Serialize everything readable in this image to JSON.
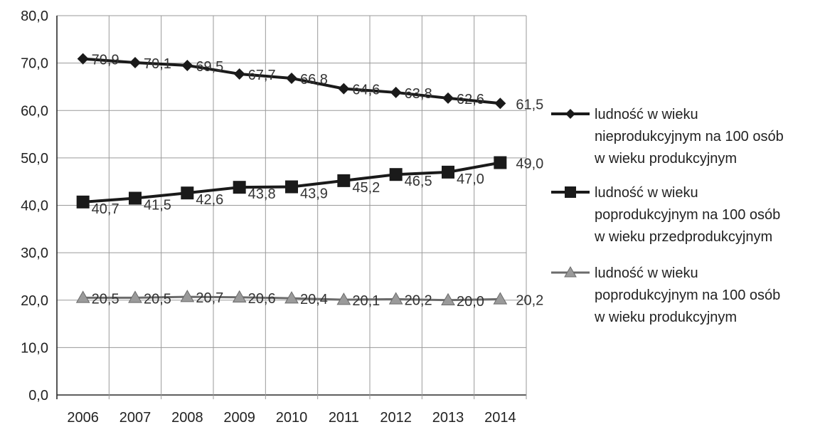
{
  "chart_data": {
    "type": "line",
    "title": "",
    "xlabel": "",
    "ylabel": "",
    "ylim": [
      0,
      80
    ],
    "yticks": [
      "0,0",
      "10,0",
      "20,0",
      "30,0",
      "40,0",
      "50,0",
      "60,0",
      "70,0",
      "80,0"
    ],
    "grid": true,
    "legend_position": "right",
    "categories": [
      "2006",
      "2007",
      "2008",
      "2009",
      "2010",
      "2011",
      "2012",
      "2013",
      "2014"
    ],
    "series": [
      {
        "name": "ludność w wieku nieprodukcyjnym na 100 osób w wieku produkcyjnym",
        "legend_lines": [
          "ludność w wieku",
          "nieprodukcyjnym na 100 osób",
          "w wieku produkcyjnym"
        ],
        "marker": "diamond",
        "color": "#1a1a1a",
        "values": [
          70.9,
          70.1,
          69.5,
          67.7,
          66.8,
          64.6,
          63.8,
          62.6,
          61.5
        ],
        "labels": [
          "70,9",
          "70,1",
          "69,5",
          "67,7",
          "66,8",
          "64,6",
          "63,8",
          "62,6",
          "61,5"
        ]
      },
      {
        "name": "ludność w wieku poprodukcyjnym na 100 osób w wieku przedprodukcyjnym",
        "legend_lines": [
          "ludność w wieku",
          "poprodukcyjnym na 100 osób",
          "w wieku przedprodukcyjnym"
        ],
        "marker": "square",
        "color": "#1a1a1a",
        "values": [
          40.7,
          41.5,
          42.6,
          43.8,
          43.9,
          45.2,
          46.5,
          47.0,
          49.0
        ],
        "labels": [
          "40,7",
          "41,5",
          "42,6",
          "43,8",
          "43,9",
          "45,2",
          "46,5",
          "47,0",
          "49,0"
        ]
      },
      {
        "name": "ludność w wieku poprodukcyjnym na 100 osób w wieku produkcyjnym",
        "legend_lines": [
          "ludność w wieku",
          "poprodukcyjnym na 100 osób",
          "w wieku produkcyjnym"
        ],
        "marker": "triangle",
        "color": "#6b6b6b",
        "values": [
          20.5,
          20.5,
          20.7,
          20.6,
          20.4,
          20.1,
          20.2,
          20.0,
          20.2
        ],
        "labels": [
          "20,5",
          "20,5",
          "20,7",
          "20,6",
          "20,4",
          "20,1",
          "20,2",
          "20,0",
          "20,2"
        ]
      }
    ]
  }
}
